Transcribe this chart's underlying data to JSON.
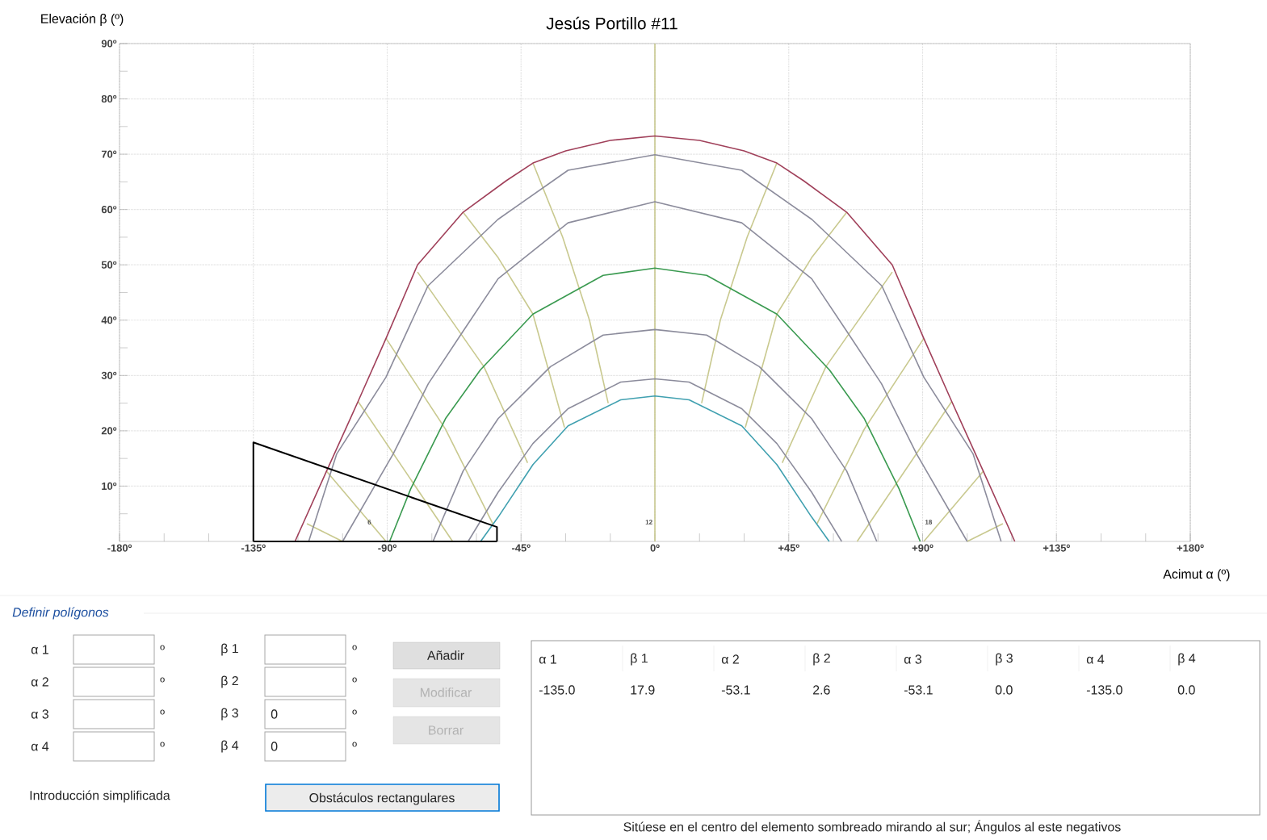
{
  "chart_data": {
    "type": "line",
    "title": "Jesús Portillo #11",
    "xlabel": "Acimut α (º)",
    "ylabel": "Elevación β (º)",
    "xlim": [
      -180,
      180
    ],
    "ylim": [
      0,
      90
    ],
    "xticks": [
      {
        "value": -180,
        "label": "-180º"
      },
      {
        "value": -165,
        "label": null
      },
      {
        "value": -150,
        "label": null
      },
      {
        "value": -135,
        "label": "-135º"
      },
      {
        "value": -120,
        "label": null
      },
      {
        "value": -105,
        "label": null
      },
      {
        "value": -90,
        "label": "-90º"
      },
      {
        "value": -75,
        "label": null
      },
      {
        "value": -60,
        "label": null
      },
      {
        "value": -45,
        "label": "-45º"
      },
      {
        "value": -30,
        "label": null
      },
      {
        "value": -15,
        "label": null
      },
      {
        "value": 0,
        "label": "0º"
      },
      {
        "value": 15,
        "label": null
      },
      {
        "value": 30,
        "label": null
      },
      {
        "value": 45,
        "label": "+45º"
      },
      {
        "value": 60,
        "label": null
      },
      {
        "value": 75,
        "label": null
      },
      {
        "value": 90,
        "label": "+90º"
      },
      {
        "value": 105,
        "label": null
      },
      {
        "value": 120,
        "label": null
      },
      {
        "value": 135,
        "label": "+135º"
      },
      {
        "value": 150,
        "label": null
      },
      {
        "value": 165,
        "label": null
      },
      {
        "value": 180,
        "label": "+180º"
      }
    ],
    "yticks": [
      {
        "value": 5,
        "label": null
      },
      {
        "value": 10,
        "label": "10º"
      },
      {
        "value": 15,
        "label": null
      },
      {
        "value": 20,
        "label": "20º"
      },
      {
        "value": 25,
        "label": null
      },
      {
        "value": 30,
        "label": "30º"
      },
      {
        "value": 35,
        "label": null
      },
      {
        "value": 40,
        "label": "40º"
      },
      {
        "value": 45,
        "label": null
      },
      {
        "value": 50,
        "label": "50º"
      },
      {
        "value": 55,
        "label": null
      },
      {
        "value": 60,
        "label": "60º"
      },
      {
        "value": 65,
        "label": null
      },
      {
        "value": 70,
        "label": "70º"
      },
      {
        "value": 75,
        "label": null
      },
      {
        "value": 80,
        "label": "80º"
      },
      {
        "value": 85,
        "label": null
      },
      {
        "value": 90,
        "label": "90º"
      }
    ],
    "grid": true,
    "series": [
      {
        "color": "#c9c98f",
        "x": [
          0,
          0
        ],
        "values": [
          0,
          90
        ]
      },
      {
        "color": "#c9c98f",
        "x": [
          -41,
          -31,
          -22,
          -15.7
        ],
        "values": [
          68.4,
          55,
          40,
          25
        ]
      },
      {
        "color": "#c9c98f",
        "x": [
          -64.5,
          -52.7,
          -41,
          -30.4
        ],
        "values": [
          59.5,
          51.3,
          41.1,
          20.6
        ]
      },
      {
        "color": "#c9c98f",
        "x": [
          -79.8,
          -57.5,
          -42.8
        ],
        "values": [
          48.7,
          31.6,
          14.2
        ]
      },
      {
        "color": "#c9c98f",
        "x": [
          -90.4,
          -70.4,
          -54.5
        ],
        "values": [
          36.7,
          20.3,
          3.2
        ]
      },
      {
        "color": "#c9c98f",
        "x": [
          -99.8,
          -68
        ],
        "values": [
          25.3,
          0
        ]
      },
      {
        "color": "#c9c98f",
        "x": [
          -110.4,
          -90.4
        ],
        "values": [
          12.7,
          0
        ]
      },
      {
        "color": "#c9c98f",
        "x": [
          -117,
          -105
        ],
        "values": [
          3.2,
          0
        ]
      },
      {
        "color": "#c9c98f",
        "x": [
          41,
          31,
          22,
          15.7
        ],
        "values": [
          68.4,
          55,
          40,
          25
        ]
      },
      {
        "color": "#c9c98f",
        "x": [
          64.5,
          52.7,
          41,
          30.4
        ],
        "values": [
          59.5,
          51.3,
          41.1,
          20.6
        ]
      },
      {
        "color": "#c9c98f",
        "x": [
          79.8,
          57.5,
          42.8
        ],
        "values": [
          48.7,
          31.6,
          14.2
        ]
      },
      {
        "color": "#c9c98f",
        "x": [
          90.4,
          70.4,
          54.5
        ],
        "values": [
          36.7,
          20.3,
          3.2
        ]
      },
      {
        "color": "#c9c98f",
        "x": [
          99.8,
          68
        ],
        "values": [
          25.3,
          0
        ]
      },
      {
        "color": "#c9c98f",
        "x": [
          110.4,
          90.4
        ],
        "values": [
          12.7,
          0
        ]
      },
      {
        "color": "#c9c98f",
        "x": [
          117,
          105
        ],
        "values": [
          3.2,
          0
        ]
      },
      {
        "color": "#a0405a",
        "x": [
          -121,
          -110.4,
          -99.8,
          -90.4,
          -79.8,
          -64.5,
          -50,
          -41,
          -30,
          -15,
          0,
          15,
          30,
          41,
          50,
          64.5,
          79.8,
          90.4,
          99.8,
          110.4,
          121
        ],
        "values": [
          0,
          12.7,
          25.3,
          36.7,
          50,
          59.5,
          65.2,
          68.4,
          70.6,
          72.5,
          73.3,
          72.5,
          70.6,
          68.4,
          65.2,
          59.5,
          50,
          36.7,
          25.3,
          12.7,
          0
        ]
      },
      {
        "color": "#8c8c9c",
        "x": [
          -116.4,
          -107,
          -90.4,
          -76.3,
          -52.8,
          -29.2,
          0,
          29.2,
          52.8,
          76.3,
          90.4,
          107,
          116.4
        ],
        "values": [
          0,
          15.8,
          29.7,
          46.2,
          58.2,
          67.1,
          69.9,
          67.1,
          58.2,
          46.2,
          29.7,
          15.8,
          0
        ]
      },
      {
        "color": "#8c8c9c",
        "x": [
          -105,
          -88,
          -76.2,
          -64.5,
          -52.7,
          -29.2,
          0,
          29.2,
          52.7,
          64.5,
          76.2,
          88,
          105
        ],
        "values": [
          0,
          15.8,
          28.5,
          38,
          47.5,
          57.6,
          61.4,
          57.6,
          47.5,
          38,
          28.5,
          15.8,
          0
        ]
      },
      {
        "color": "#3a9a50",
        "x": [
          -89.2,
          -82.1,
          -70.4,
          -58.7,
          -41,
          -17.4,
          0,
          17.4,
          41,
          58.7,
          70.4,
          82.1,
          89.2
        ],
        "values": [
          0,
          9.5,
          22.2,
          31,
          41.1,
          48.1,
          49.4,
          48.1,
          41.1,
          31,
          22.2,
          9.5,
          0
        ]
      },
      {
        "color": "#8c8c9c",
        "x": [
          -74.6,
          -64.5,
          -52.7,
          -35.1,
          -17.4,
          0,
          17.4,
          35.1,
          52.7,
          64.5,
          74.6
        ],
        "values": [
          0,
          12.7,
          22.2,
          31.6,
          37.3,
          38.3,
          37.3,
          31.6,
          22.2,
          12.7,
          0
        ]
      },
      {
        "color": "#8c8c9c",
        "x": [
          -62.8,
          -52.7,
          -41,
          -29.2,
          -11.5,
          0,
          11.5,
          29.2,
          41,
          52.7,
          62.8
        ],
        "values": [
          0,
          8.9,
          17.7,
          24,
          28.8,
          29.4,
          28.8,
          24,
          17.7,
          8.9,
          0
        ]
      },
      {
        "color": "#40a0b0",
        "x": [
          -58.6,
          -52.7,
          -41,
          -29.2,
          -11.5,
          0,
          11.5,
          29.2,
          41,
          52.7,
          58.6
        ],
        "values": [
          0,
          4.4,
          13.9,
          20.9,
          25.6,
          26.3,
          25.6,
          20.9,
          13.9,
          4.4,
          0
        ]
      },
      {
        "color": "#000000",
        "x": [
          -135,
          -135,
          -53.1,
          -53.1
        ],
        "values": [
          0,
          17.9,
          2.6,
          0
        ]
      },
      {
        "color": "#000000",
        "x": [
          -135,
          -53.1
        ],
        "values": [
          0,
          0
        ]
      }
    ],
    "annotations": [
      "6",
      "12",
      "18",
      "Definir polígonos",
      "α 1",
      "α 2",
      "α 3",
      "α 4",
      "º",
      "º",
      "º",
      "º",
      "β 1",
      "β 2",
      "β 3",
      "β 4",
      "º",
      "º",
      "º",
      "º",
      "0",
      "0",
      "Añadir",
      "Modificar",
      "Borrar",
      "Introducción simplificada",
      "Obstáculos rectangulares",
      "α 1",
      "β 1",
      "α 2",
      "β 2",
      "α 3",
      "β 3",
      "α 4",
      "β 4",
      "-135.0",
      "17.9",
      "-53.1",
      "2.6",
      "-53.1",
      "0.0",
      "-135.0",
      "0.0",
      "Sitúese en el centro del elemento sombreado mirando al sur; Ángulos al este negativos"
    ]
  }
}
